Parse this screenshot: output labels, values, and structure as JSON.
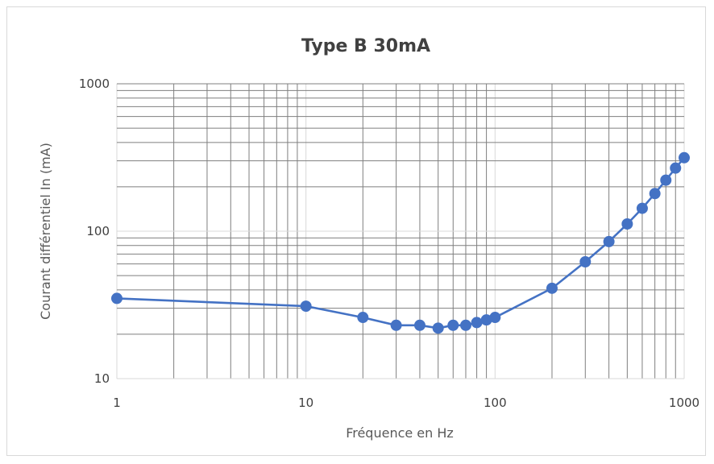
{
  "chart_data": {
    "type": "line",
    "title": "Type B 30mA",
    "xlabel": "Fréquence en Hz",
    "ylabel": "Courant différentiel In (mA)",
    "xscale": "log",
    "yscale": "log",
    "xlim": [
      1,
      1000
    ],
    "ylim": [
      10,
      1000
    ],
    "x_tick_labels": [
      "1",
      "10",
      "100",
      "1000"
    ],
    "y_tick_labels": [
      "10",
      "100",
      "1000"
    ],
    "grid": true,
    "legend": "none",
    "series": [
      {
        "color": "#4472c4",
        "x": [
          1,
          10,
          20,
          30,
          40,
          50,
          60,
          70,
          80,
          90,
          100,
          200,
          300,
          400,
          500,
          600,
          700,
          800,
          900,
          1000
        ],
        "y": [
          35,
          31,
          26,
          23,
          23,
          22,
          23,
          23,
          24,
          25,
          26,
          41,
          62,
          85,
          112,
          143,
          180,
          222,
          268,
          315
        ]
      }
    ]
  }
}
